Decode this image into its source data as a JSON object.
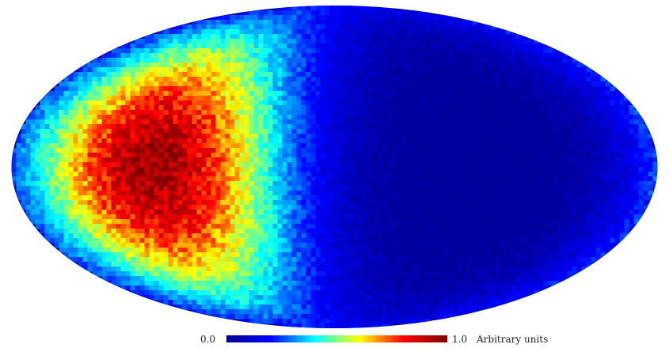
{
  "chart_data": {
    "type": "heatmap",
    "projection": "mollweide",
    "title": "",
    "colormap": "jet",
    "colormap_stops": [
      "#00008f",
      "#0000ff",
      "#00ffff",
      "#ffff00",
      "#ff0000",
      "#800000"
    ],
    "background": "#00008f",
    "noise": 0.08,
    "blob": {
      "center_lon_deg": -100,
      "center_lat_deg": 0,
      "peak": 0.95,
      "width_deg": 50
    },
    "colorbar": {
      "min": 0.0,
      "max": 1.0,
      "min_label": "0.0",
      "max_label": "1.0",
      "units": "Arbitrary units",
      "orientation": "horizontal",
      "placement": "bottom"
    }
  }
}
